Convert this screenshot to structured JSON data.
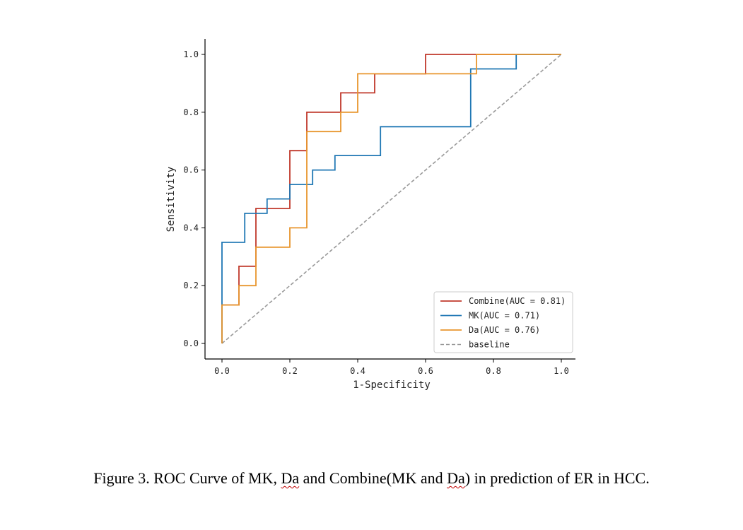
{
  "chart_data": {
    "type": "line",
    "title": "",
    "xlabel": "1-Specificity",
    "ylabel": "Sensitivity",
    "xlim": [
      0,
      1
    ],
    "ylim": [
      0,
      1
    ],
    "xticks": [
      0,
      0.2,
      0.4,
      0.6,
      0.8,
      1.0
    ],
    "yticks": [
      0,
      0.2,
      0.4,
      0.6,
      0.8,
      1.0
    ],
    "xtick_labels": [
      "0.0",
      "0.2",
      "0.4",
      "0.6",
      "0.8",
      "1.0"
    ],
    "ytick_labels": [
      "0.0",
      "0.2",
      "0.4",
      "0.6",
      "0.8",
      "1.0"
    ],
    "grid": false,
    "legend_position": "lower-right",
    "series": [
      {
        "name": "Combine",
        "legend_label": "Combine(AUC = 0.81)",
        "auc": 0.81,
        "color": "#c0392b",
        "x": [
          0,
          0,
          0.05,
          0.05,
          0.1,
          0.1,
          0.2,
          0.2,
          0.25,
          0.25,
          0.35,
          0.35,
          0.45,
          0.45,
          0.6,
          0.6,
          0.75,
          1.0
        ],
        "y": [
          0,
          0.133,
          0.133,
          0.267,
          0.267,
          0.467,
          0.467,
          0.667,
          0.667,
          0.8,
          0.8,
          0.867,
          0.867,
          0.933,
          0.933,
          1.0,
          1.0,
          1.0
        ]
      },
      {
        "name": "MK",
        "legend_label": "MK(AUC = 0.71)",
        "auc": 0.71,
        "color": "#1f77b4",
        "x": [
          0,
          0,
          0.067,
          0.067,
          0.133,
          0.133,
          0.2,
          0.2,
          0.267,
          0.267,
          0.333,
          0.333,
          0.467,
          0.467,
          0.733,
          0.733,
          0.867,
          0.867,
          1.0
        ],
        "y": [
          0,
          0.35,
          0.35,
          0.45,
          0.45,
          0.5,
          0.5,
          0.55,
          0.55,
          0.6,
          0.6,
          0.65,
          0.65,
          0.75,
          0.75,
          0.95,
          0.95,
          1.0,
          1.0
        ]
      },
      {
        "name": "Da",
        "legend_label": "Da(AUC = 0.76)",
        "auc": 0.76,
        "color": "#e8962e",
        "x": [
          0,
          0,
          0.05,
          0.05,
          0.1,
          0.1,
          0.2,
          0.2,
          0.25,
          0.25,
          0.35,
          0.35,
          0.4,
          0.4,
          0.75,
          0.75,
          1.0
        ],
        "y": [
          0,
          0.133,
          0.133,
          0.2,
          0.2,
          0.333,
          0.333,
          0.4,
          0.4,
          0.733,
          0.733,
          0.8,
          0.8,
          0.933,
          0.933,
          1.0,
          1.0
        ]
      },
      {
        "name": "baseline",
        "legend_label": "baseline",
        "color": "#999999",
        "dashed": true,
        "x": [
          0,
          1
        ],
        "y": [
          0,
          1
        ]
      }
    ]
  },
  "caption": {
    "prefix": "Figure 3. ROC Curve of MK, ",
    "da_1": "Da",
    "middle": " and Combine(MK and ",
    "da_2": "Da",
    "suffix": ") in prediction of ER in HCC."
  }
}
